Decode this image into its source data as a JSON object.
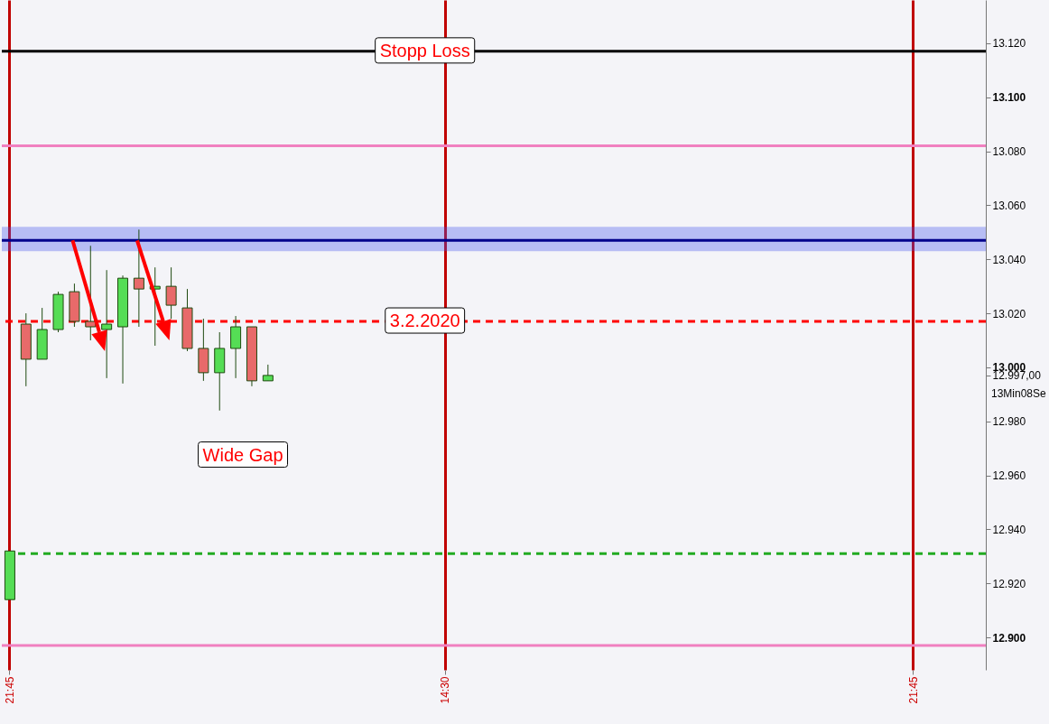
{
  "chart_data": {
    "type": "candlestick",
    "categories": [
      "21:45",
      null,
      null,
      null,
      null,
      null,
      null,
      null,
      null,
      null,
      null,
      null,
      null,
      null,
      null,
      null,
      null,
      null,
      null,
      null,
      null,
      null,
      null,
      null,
      null,
      null,
      null,
      "14:30",
      null,
      null,
      null,
      null,
      null,
      null,
      null,
      null,
      null,
      null,
      null,
      null,
      null,
      null,
      null,
      null,
      null,
      null,
      null,
      null,
      null,
      null,
      null,
      null,
      null,
      null,
      null,
      null,
      "21:45",
      null,
      null,
      null,
      null
    ],
    "ohlc": [
      [
        12914,
        12932,
        12914,
        12932
      ],
      [
        13016,
        13020,
        12993,
        13003
      ],
      [
        13003,
        13022,
        13003,
        13014
      ],
      [
        13014,
        13028,
        13013,
        13027
      ],
      [
        13028,
        13031,
        13015,
        13017
      ],
      [
        13017,
        13045,
        13010,
        13015
      ],
      [
        13014,
        13036,
        12996,
        13016
      ],
      [
        13015,
        13034,
        12994,
        13033
      ],
      [
        13033,
        13051,
        13015,
        13029
      ],
      [
        13029,
        13037,
        13008,
        13030
      ],
      [
        13030,
        13037,
        13018,
        13023
      ],
      [
        13022,
        13029,
        13006,
        13007
      ],
      [
        13007,
        13018,
        12995,
        12998
      ],
      [
        12998,
        13013,
        12984,
        13007
      ],
      [
        13007,
        13019,
        12996,
        13015
      ],
      [
        13015,
        13015,
        12993,
        12995
      ],
      [
        12995,
        13001,
        12995,
        12997
      ],
      null,
      null,
      null,
      null,
      null,
      null,
      null,
      null,
      null,
      null,
      null,
      null,
      null,
      null,
      null,
      null,
      null,
      null,
      null,
      null,
      null,
      null,
      null,
      null,
      null,
      null,
      null,
      null,
      null,
      null,
      null,
      null,
      null,
      null,
      null,
      null,
      null,
      null,
      null,
      null,
      null,
      null,
      null,
      null
    ],
    "colors": [
      "#55dd55",
      "#e86a6a",
      "#55dd55",
      "#55dd55",
      "#e86a6a",
      "#e86a6a",
      "#55dd55",
      "#55dd55",
      "#e86a6a",
      "#55dd55",
      "#e86a6a",
      "#e86a6a",
      "#e86a6a",
      "#55dd55",
      "#55dd55",
      "#e86a6a",
      "#55dd55",
      null,
      null,
      null,
      null,
      null,
      null,
      null,
      null,
      null,
      null,
      null,
      null,
      null,
      null,
      null,
      null,
      null,
      null,
      null,
      null,
      null,
      null,
      null,
      null,
      null,
      null,
      null,
      null,
      null,
      null,
      null,
      null,
      null,
      null,
      null,
      null,
      null,
      null,
      null,
      null,
      null,
      null,
      null,
      null
    ],
    "ylim": [
      12888,
      13136
    ],
    "yticks": [
      {
        "value": 12900,
        "label": "12.900"
      },
      {
        "value": 12920,
        "label": "12.920"
      },
      {
        "value": 12940,
        "label": "12.940"
      },
      {
        "value": 12960,
        "label": "12.960"
      },
      {
        "value": 12980,
        "label": "12.980"
      },
      {
        "value": 12997,
        "label": "12.997,00"
      },
      {
        "value": 13000,
        "label": "13.000"
      },
      {
        "value": 13020,
        "label": "13.020"
      },
      {
        "value": 13040,
        "label": "13.040"
      },
      {
        "value": 13060,
        "label": "13.060"
      },
      {
        "value": 13080,
        "label": "13.080"
      },
      {
        "value": 13100,
        "label": "13.100"
      },
      {
        "value": 13120,
        "label": "13.120"
      }
    ],
    "ref_lines": [
      {
        "axis": "y",
        "value": 13117,
        "label": "Stopp Loss",
        "color": "#000000",
        "line_style": "solid"
      },
      {
        "axis": "y",
        "value": 13082,
        "label": null,
        "color": "#f080c0",
        "line_style": "solid"
      },
      {
        "axis": "y",
        "value": 13047,
        "label": null,
        "color": "#00008b",
        "line_style": "solid"
      },
      {
        "axis": "y",
        "value": 13017,
        "label": "3.2.2020",
        "color": "#ff0000",
        "line_style": "dashed"
      },
      {
        "axis": "y",
        "value": 12931,
        "label": null,
        "color": "#22aa22",
        "line_style": "dashed"
      },
      {
        "axis": "y",
        "value": 12897,
        "label": null,
        "color": "#f080c0",
        "line_style": "solid"
      }
    ],
    "bands": [
      {
        "axis": "y",
        "from": 13043,
        "to": 13052,
        "label": null,
        "color": "#4455ee"
      }
    ],
    "annotations": [
      "Wide Gap",
      "13Min08Se"
    ],
    "grid": "x"
  }
}
